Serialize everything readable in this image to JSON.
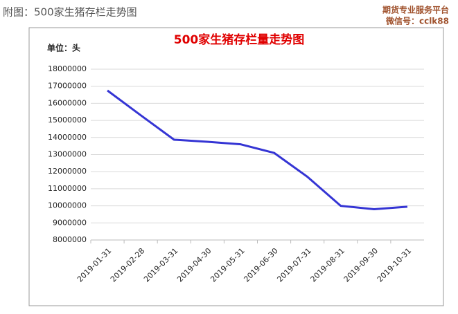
{
  "caption": "附图：500家生猪存栏走势图",
  "brand": {
    "line1": "期货专业服务平台",
    "line2": "微信号：cclk88"
  },
  "chart_data": {
    "type": "line",
    "title": "500家生猪存栏量走势图",
    "y_unit": "单位：头",
    "categories": [
      "2019-01-31",
      "2019-02-28",
      "2019-03-31",
      "2019-04-30",
      "2019-05-31",
      "2019-06-30",
      "2019-07-31",
      "2019-08-31",
      "2019-09-30",
      "2019-10-31"
    ],
    "values": [
      16750000,
      15300000,
      13870000,
      13750000,
      13600000,
      13100000,
      11700000,
      10000000,
      9800000,
      9950000
    ],
    "color": "#3535d4",
    "ylim": [
      8000000,
      18000000
    ],
    "yticks": [
      8000000,
      9000000,
      10000000,
      11000000,
      12000000,
      13000000,
      14000000,
      15000000,
      16000000,
      17000000,
      18000000
    ],
    "grid": true
  }
}
